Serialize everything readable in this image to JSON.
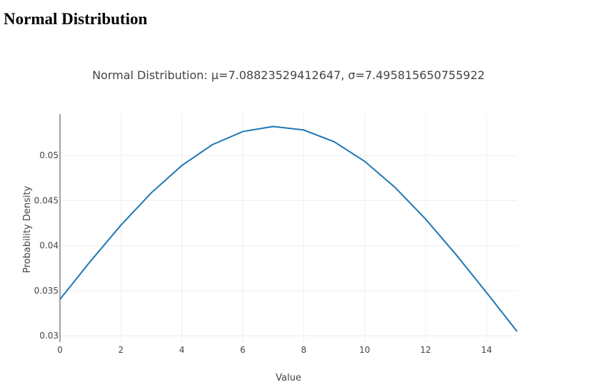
{
  "page": {
    "heading": "Normal Distribution"
  },
  "chart_data": {
    "type": "line",
    "title": "Normal Distribution: μ=7.08823529412647, σ=7.495815650755922",
    "x_label": "Value",
    "y_label": "Probability Density",
    "x": [
      0,
      1,
      2,
      3,
      4,
      5,
      6,
      7,
      8,
      9,
      10,
      11,
      12,
      13,
      14,
      15
    ],
    "series": [
      {
        "color": "#1f77b4",
        "values": [
          0.03404,
          0.03827,
          0.04227,
          0.04587,
          0.04889,
          0.0512,
          0.05266,
          0.05322,
          0.05283,
          0.05152,
          0.04935,
          0.04645,
          0.04294,
          0.039,
          0.03479,
          0.03049
        ]
      }
    ],
    "xlim": [
      0,
      15
    ],
    "xticks": [
      0,
      2,
      4,
      6,
      8,
      10,
      12,
      14
    ],
    "ylim": [
      0.0293,
      0.0546
    ],
    "yticks": [
      0.03,
      0.035,
      0.04,
      0.045,
      0.05
    ],
    "grid": true
  }
}
